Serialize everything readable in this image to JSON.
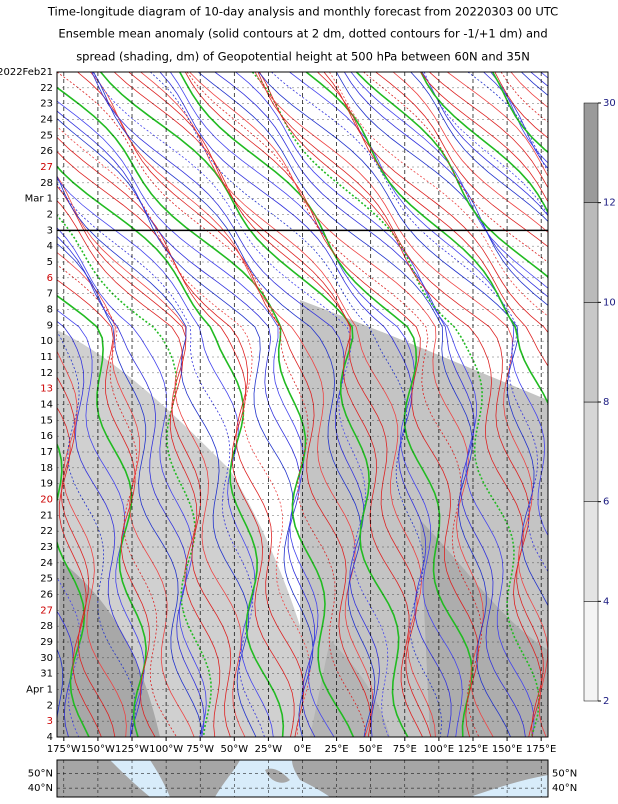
{
  "chart_data": {
    "type": "hovmoller",
    "title": [
      "Time-longitude diagram of 10-day analysis and monthly forecast from 20220303 00 UTC",
      "Ensemble mean anomaly (solid contours at 2 dm, dotted contours for -1/+1 dm) and",
      "spread (shading, dm) of Geopotential height at 500 hPa between 60N and 35N"
    ],
    "categories": [
      "2022Feb21",
      "22",
      "23",
      "24",
      "25",
      "26",
      "27",
      "28",
      "Mar 1",
      "2",
      "3",
      "4",
      "5",
      "6",
      "7",
      "8",
      "9",
      "10",
      "11",
      "12",
      "13",
      "14",
      "15",
      "16",
      "17",
      "18",
      "19",
      "20",
      "21",
      "22",
      "23",
      "24",
      "25",
      "26",
      "27",
      "28",
      "29",
      "30",
      "31",
      "Apr 1",
      "2",
      "3",
      "4"
    ],
    "category_colors": [
      "#000",
      "#000",
      "#000",
      "#000",
      "#000",
      "#000",
      "#c00",
      "#000",
      "#000",
      "#000",
      "#000",
      "#000",
      "#000",
      "#c00",
      "#000",
      "#000",
      "#000",
      "#000",
      "#000",
      "#000",
      "#c00",
      "#000",
      "#000",
      "#000",
      "#000",
      "#000",
      "#000",
      "#c00",
      "#000",
      "#000",
      "#000",
      "#000",
      "#000",
      "#000",
      "#c00",
      "#000",
      "#000",
      "#000",
      "#000",
      "#000",
      "#000",
      "#c00",
      "#000"
    ],
    "analysis_end": "3",
    "xlim": [
      -180,
      180
    ],
    "xticks": [
      {
        "value": -175,
        "label": "175°W"
      },
      {
        "value": -150,
        "label": "150°W"
      },
      {
        "value": -125,
        "label": "125°W"
      },
      {
        "value": -100,
        "label": "100°W"
      },
      {
        "value": -75,
        "label": "75°W"
      },
      {
        "value": -50,
        "label": "50°W"
      },
      {
        "value": -25,
        "label": "25°W"
      },
      {
        "value": 0,
        "label": "0°E"
      },
      {
        "value": 25,
        "label": "25°E"
      },
      {
        "value": 50,
        "label": "50°E"
      },
      {
        "value": 75,
        "label": "75°E"
      },
      {
        "value": 100,
        "label": "100°E"
      },
      {
        "value": 125,
        "label": "125°E"
      },
      {
        "value": 150,
        "label": "150°E"
      },
      {
        "value": 175,
        "label": "175°E"
      }
    ],
    "grid": true,
    "colorbar": {
      "ticks": [
        2,
        4,
        6,
        8,
        10,
        12,
        30
      ],
      "colors": [
        "#f4f4f4",
        "#e4e4e4",
        "#d6d6d6",
        "#c8c8c8",
        "#bababa",
        "#9a9a9a"
      ]
    },
    "map": {
      "ylim": [
        34,
        59
      ],
      "yticks": [
        {
          "value": 50,
          "label": "50°N"
        },
        {
          "value": 40,
          "label": "40°N"
        }
      ]
    }
  }
}
